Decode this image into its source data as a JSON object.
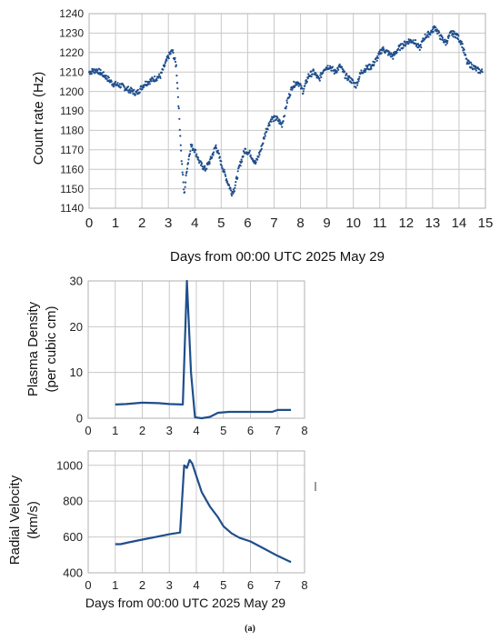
{
  "caption": "(a)",
  "chart_data": [
    {
      "type": "scatter",
      "xlabel": "Days from 00:00 UTC 2025 May 29",
      "ylabel": "Count rate (Hz)",
      "xlim": [
        0,
        15
      ],
      "ylim": [
        1140,
        1240
      ],
      "xticks": [
        0,
        1,
        2,
        3,
        4,
        5,
        6,
        7,
        8,
        9,
        10,
        11,
        12,
        13,
        14,
        15
      ],
      "yticks": [
        1140,
        1150,
        1160,
        1170,
        1180,
        1190,
        1200,
        1210,
        1220,
        1230,
        1240
      ],
      "grid": true,
      "color": "#1f4e8c",
      "series": [
        {
          "x": [
            0,
            0.3,
            0.6,
            0.9,
            1.2,
            1.5,
            1.8,
            2.1,
            2.4,
            2.7,
            3.0,
            3.15,
            3.3,
            3.4,
            3.5,
            3.6,
            3.7,
            3.85,
            4.0,
            4.2,
            4.4,
            4.6,
            4.8,
            5.0,
            5.2,
            5.4,
            5.5,
            5.7,
            5.9,
            6.1,
            6.3,
            6.5,
            6.7,
            6.9,
            7.1,
            7.3,
            7.5,
            7.7,
            7.9,
            8.1,
            8.3,
            8.5,
            8.7,
            8.9,
            9.1,
            9.3,
            9.5,
            9.7,
            9.9,
            10.1,
            10.3,
            10.5,
            10.7,
            10.9,
            11.1,
            11.3,
            11.5,
            11.7,
            11.9,
            12.1,
            12.3,
            12.5,
            12.7,
            12.9,
            13.1,
            13.3,
            13.5,
            13.7,
            13.9,
            14.1,
            14.3,
            14.5,
            14.7,
            14.9
          ],
          "y": [
            1210,
            1211,
            1208,
            1204,
            1203,
            1201,
            1199,
            1204,
            1206,
            1208,
            1218,
            1221,
            1213,
            1190,
            1165,
            1147,
            1160,
            1172,
            1170,
            1163,
            1160,
            1165,
            1172,
            1163,
            1155,
            1148,
            1150,
            1162,
            1170,
            1168,
            1163,
            1170,
            1180,
            1186,
            1186,
            1183,
            1195,
            1203,
            1205,
            1200,
            1208,
            1210,
            1206,
            1212,
            1213,
            1210,
            1213,
            1208,
            1206,
            1203,
            1210,
            1212,
            1213,
            1217,
            1222,
            1220,
            1218,
            1222,
            1224,
            1226,
            1226,
            1222,
            1228,
            1230,
            1233,
            1228,
            1225,
            1230,
            1229,
            1225,
            1215,
            1213,
            1211,
            1210
          ]
        }
      ]
    },
    {
      "type": "line",
      "xlabel": "",
      "ylabel": "Plasma Density (per cubic cm)",
      "ylabel_lines": [
        "Plasma Density",
        "(per cubic cm)"
      ],
      "xlim": [
        0,
        8
      ],
      "ylim": [
        0,
        30
      ],
      "xticks": [
        0,
        1,
        2,
        3,
        4,
        5,
        6,
        7,
        8
      ],
      "yticks": [
        0,
        10,
        20,
        30
      ],
      "grid": true,
      "color": "#1f4e8c",
      "series": [
        {
          "x": [
            1.0,
            1.4,
            2.0,
            2.6,
            3.0,
            3.5,
            3.65,
            3.8,
            3.95,
            4.2,
            4.5,
            4.8,
            5.2,
            6.0,
            6.8,
            7.0,
            7.5
          ],
          "y": [
            3.0,
            3.1,
            3.4,
            3.3,
            3.1,
            3.0,
            30,
            10,
            0.2,
            0.0,
            0.3,
            1.2,
            1.4,
            1.4,
            1.4,
            1.8,
            1.8
          ]
        }
      ]
    },
    {
      "type": "line",
      "xlabel": "Days from 00:00 UTC 2025 May 29",
      "ylabel": "Radial Velocity (km/s)",
      "ylabel_lines": [
        "Radial Velocity",
        "(km/s)"
      ],
      "xlim": [
        0,
        8
      ],
      "ylim": [
        400,
        1080
      ],
      "xticks": [
        0,
        1,
        2,
        3,
        4,
        5,
        6,
        7,
        8
      ],
      "yticks": [
        400,
        600,
        800,
        1000
      ],
      "grid": true,
      "color": "#1f4e8c",
      "series": [
        {
          "x": [
            1.0,
            1.2,
            1.5,
            2.0,
            2.5,
            3.0,
            3.4,
            3.55,
            3.65,
            3.75,
            3.85,
            4.0,
            4.2,
            4.5,
            4.8,
            5.0,
            5.3,
            5.6,
            6.0,
            6.5,
            7.0,
            7.5
          ],
          "y": [
            560,
            560,
            570,
            585,
            600,
            615,
            625,
            1000,
            985,
            1030,
            1010,
            940,
            850,
            770,
            710,
            660,
            620,
            595,
            575,
            535,
            495,
            460
          ]
        }
      ]
    }
  ]
}
